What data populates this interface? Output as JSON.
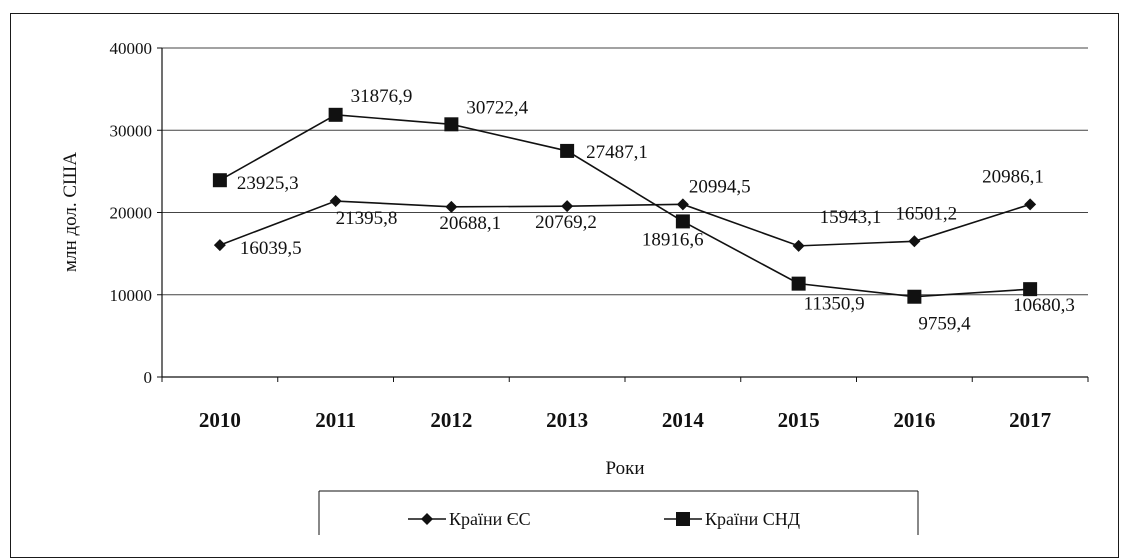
{
  "chart_data": {
    "type": "line",
    "title": "",
    "xlabel": "Роки",
    "ylabel": "млн дол. США",
    "categories": [
      "2010",
      "2011",
      "2012",
      "2013",
      "2014",
      "2015",
      "2016",
      "2017"
    ],
    "ylim": [
      0,
      40000
    ],
    "yticks": [
      "0",
      "10000",
      "20000",
      "30000",
      "40000"
    ],
    "grid": true,
    "legend_position": "bottom",
    "series": [
      {
        "name": "Країни ЄС",
        "marker": "diamond",
        "color": "#111111",
        "values": [
          16039.5,
          21395.8,
          20688.1,
          20769.2,
          20994.5,
          15943.1,
          16501.2,
          20986.1
        ],
        "labels": [
          "16039,5",
          "21395,8",
          "20688,1",
          "20769,2",
          "20994,5",
          "15943,1",
          "16501,2",
          "20986,1"
        ]
      },
      {
        "name": "Країни СНД",
        "marker": "square",
        "color": "#111111",
        "values": [
          23925.3,
          31876.9,
          30722.4,
          27487.1,
          18916.6,
          11350.9,
          9759.4,
          10680.3
        ],
        "labels": [
          "23925,3",
          "31876,9",
          "30722,4",
          "27487,1",
          "18916,6",
          "11350,9",
          "9759,4",
          "10680,3"
        ]
      }
    ]
  }
}
